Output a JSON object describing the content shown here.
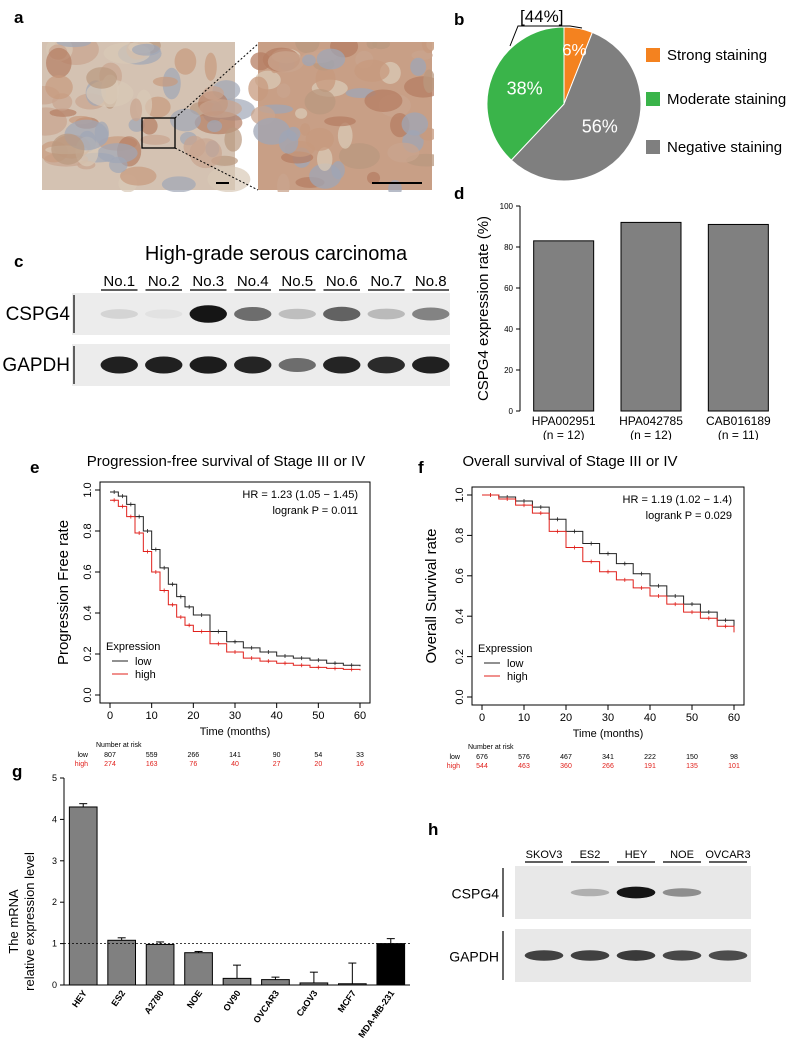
{
  "panel_a": {
    "letter": "a",
    "tissue_colors": [
      "#c9a48e",
      "#b9987f",
      "#9fa6b6",
      "#d9c9b6",
      "#b57d63",
      "#c79a7d"
    ]
  },
  "panel_b": {
    "letter": "b",
    "bracket_label": "[44%]",
    "chart_data": {
      "type": "pie",
      "slices": [
        {
          "label": "Strong staining",
          "value": 6,
          "text": "6%",
          "color": "#f4821f"
        },
        {
          "label": "Moderate staining",
          "value": 38,
          "text": "38%",
          "color": "#3ab44a"
        },
        {
          "label": "Negative staining",
          "value": 56,
          "text": "56%",
          "color": "#7f7f7f"
        }
      ]
    }
  },
  "panel_c": {
    "letter": "c",
    "title": "High-grade serous carcinoma",
    "lanes": [
      "No.1",
      "No.2",
      "No.3",
      "No.4",
      "No.5",
      "No.6",
      "No.7",
      "No.8"
    ],
    "rows": [
      {
        "label": "CSPG4",
        "intensities": [
          0.08,
          0.02,
          0.95,
          0.55,
          0.18,
          0.6,
          0.2,
          0.45
        ]
      },
      {
        "label": "GAPDH",
        "intensities": [
          0.9,
          0.9,
          0.92,
          0.88,
          0.55,
          0.88,
          0.85,
          0.9
        ]
      }
    ]
  },
  "panel_d": {
    "letter": "d",
    "chart_data": {
      "type": "bar",
      "categories": [
        "HPA002951",
        "HPA042785",
        "CAB016189"
      ],
      "sublabels": [
        "(n = 12)",
        "(n = 12)",
        "(n = 11)"
      ],
      "values": [
        83,
        92,
        91
      ],
      "ylabel": "CSPG4 expression rate (%)",
      "ylim": [
        0,
        100
      ],
      "yticks": [
        0,
        20,
        40,
        60,
        80,
        100
      ],
      "bar_color": "#808080"
    }
  },
  "panel_e": {
    "letter": "e",
    "chart_data": {
      "type": "line",
      "title": "Progression-free survival of Stage III or IV",
      "xlabel": "Time (months)",
      "ylabel": "Progression Free rate",
      "hr_text": "HR = 1.23 (1.05 − 1.45)",
      "p_text": "logrank P = 0.011",
      "legend_title": "Expression",
      "xticks": [
        0,
        10,
        20,
        30,
        40,
        50,
        60
      ],
      "yticks": [
        0.0,
        0.2,
        0.4,
        0.6,
        0.8,
        1.0
      ],
      "ytick_labels": [
        "0.0",
        "0.2",
        "0.4",
        "0.6",
        "0.8",
        "1.0"
      ],
      "xlim": [
        0,
        60
      ],
      "ylim": [
        0,
        1
      ],
      "series": [
        {
          "name": "low",
          "color": "#222222",
          "x": [
            0,
            2,
            4,
            6,
            8,
            10,
            12,
            14,
            16,
            18,
            20,
            24,
            28,
            32,
            36,
            40,
            44,
            48,
            52,
            56,
            60
          ],
          "y": [
            0.99,
            0.97,
            0.93,
            0.87,
            0.8,
            0.71,
            0.62,
            0.54,
            0.48,
            0.43,
            0.39,
            0.31,
            0.26,
            0.23,
            0.21,
            0.19,
            0.18,
            0.17,
            0.155,
            0.145,
            0.14
          ]
        },
        {
          "name": "high",
          "color": "#e0201b",
          "x": [
            0,
            2,
            4,
            6,
            8,
            10,
            12,
            14,
            16,
            18,
            20,
            24,
            28,
            32,
            36,
            40,
            44,
            48,
            52,
            56,
            60
          ],
          "y": [
            0.95,
            0.92,
            0.87,
            0.79,
            0.7,
            0.6,
            0.51,
            0.44,
            0.38,
            0.34,
            0.31,
            0.25,
            0.21,
            0.18,
            0.165,
            0.155,
            0.145,
            0.135,
            0.13,
            0.125,
            0.12
          ]
        }
      ],
      "risk_table": {
        "header": "Number at risk",
        "rows": [
          {
            "name": "low",
            "color": "#000000",
            "values": [
              "807",
              "559",
              "266",
              "141",
              "90",
              "54",
              "33"
            ]
          },
          {
            "name": "high",
            "color": "#e0201b",
            "values": [
              "274",
              "163",
              "76",
              "40",
              "27",
              "20",
              "16"
            ]
          }
        ]
      }
    }
  },
  "panel_f": {
    "letter": "f",
    "chart_data": {
      "type": "line",
      "title": "Overall survival of Stage III or IV",
      "xlabel": "Time (months)",
      "ylabel": "Overall Survival rate",
      "hr_text": "HR = 1.19 (1.02 − 1.4)",
      "p_text": "logrank P = 0.029",
      "legend_title": "Expression",
      "xticks": [
        0,
        10,
        20,
        30,
        40,
        50,
        60
      ],
      "yticks": [
        0.0,
        0.2,
        0.4,
        0.6,
        0.8,
        1.0
      ],
      "ytick_labels": [
        "0.0",
        "0.2",
        "0.4",
        "0.6",
        "0.8",
        "1.0"
      ],
      "xlim": [
        0,
        60
      ],
      "ylim": [
        0,
        1
      ],
      "series": [
        {
          "name": "low",
          "color": "#222222",
          "x": [
            0,
            4,
            8,
            12,
            16,
            20,
            24,
            28,
            32,
            36,
            40,
            44,
            48,
            52,
            56,
            60
          ],
          "y": [
            1.0,
            0.99,
            0.97,
            0.94,
            0.88,
            0.82,
            0.76,
            0.71,
            0.66,
            0.61,
            0.55,
            0.5,
            0.46,
            0.42,
            0.38,
            0.34
          ]
        },
        {
          "name": "high",
          "color": "#e0201b",
          "x": [
            0,
            4,
            8,
            12,
            16,
            20,
            24,
            28,
            32,
            36,
            40,
            44,
            48,
            52,
            56,
            60
          ],
          "y": [
            1.0,
            0.98,
            0.95,
            0.91,
            0.82,
            0.74,
            0.67,
            0.62,
            0.58,
            0.54,
            0.5,
            0.46,
            0.42,
            0.39,
            0.35,
            0.32
          ]
        }
      ],
      "risk_table": {
        "header": "Number at risk",
        "rows": [
          {
            "name": "low",
            "color": "#000000",
            "values": [
              "676",
              "576",
              "467",
              "341",
              "222",
              "150",
              "98"
            ]
          },
          {
            "name": "high",
            "color": "#e0201b",
            "values": [
              "544",
              "463",
              "360",
              "266",
              "191",
              "135",
              "101"
            ]
          }
        ]
      }
    }
  },
  "panel_g": {
    "letter": "g",
    "chart_data": {
      "type": "bar",
      "ylabel_line1": "The mRNA",
      "ylabel_line2": "relative expression level",
      "categories": [
        "HEY",
        "ES2",
        "A2780",
        "NOE",
        "OV90",
        "OVCAR3",
        "CaOV3",
        "MCF7",
        "MDA-MB-231"
      ],
      "values": [
        4.3,
        1.08,
        0.98,
        0.78,
        0.16,
        0.13,
        0.05,
        0.03,
        1.0
      ],
      "errors": [
        0.08,
        0.06,
        0.06,
        0.03,
        0.32,
        0.06,
        0.26,
        0.5,
        0.12
      ],
      "colors": [
        "#808080",
        "#808080",
        "#808080",
        "#808080",
        "#808080",
        "#808080",
        "#808080",
        "#808080",
        "#000000"
      ],
      "ylim": [
        0,
        5
      ],
      "yticks": [
        0,
        1,
        2,
        3,
        4,
        5
      ],
      "reference_line": 1
    }
  },
  "panel_h": {
    "letter": "h",
    "lanes": [
      "SKOV3",
      "ES2",
      "HEY",
      "NOE",
      "OVCAR3"
    ],
    "rows": [
      {
        "label": "CSPG4",
        "intensities": [
          0.0,
          0.25,
          0.95,
          0.4,
          0.0
        ]
      },
      {
        "label": "GAPDH",
        "intensities": [
          0.75,
          0.75,
          0.78,
          0.72,
          0.7
        ]
      }
    ]
  }
}
